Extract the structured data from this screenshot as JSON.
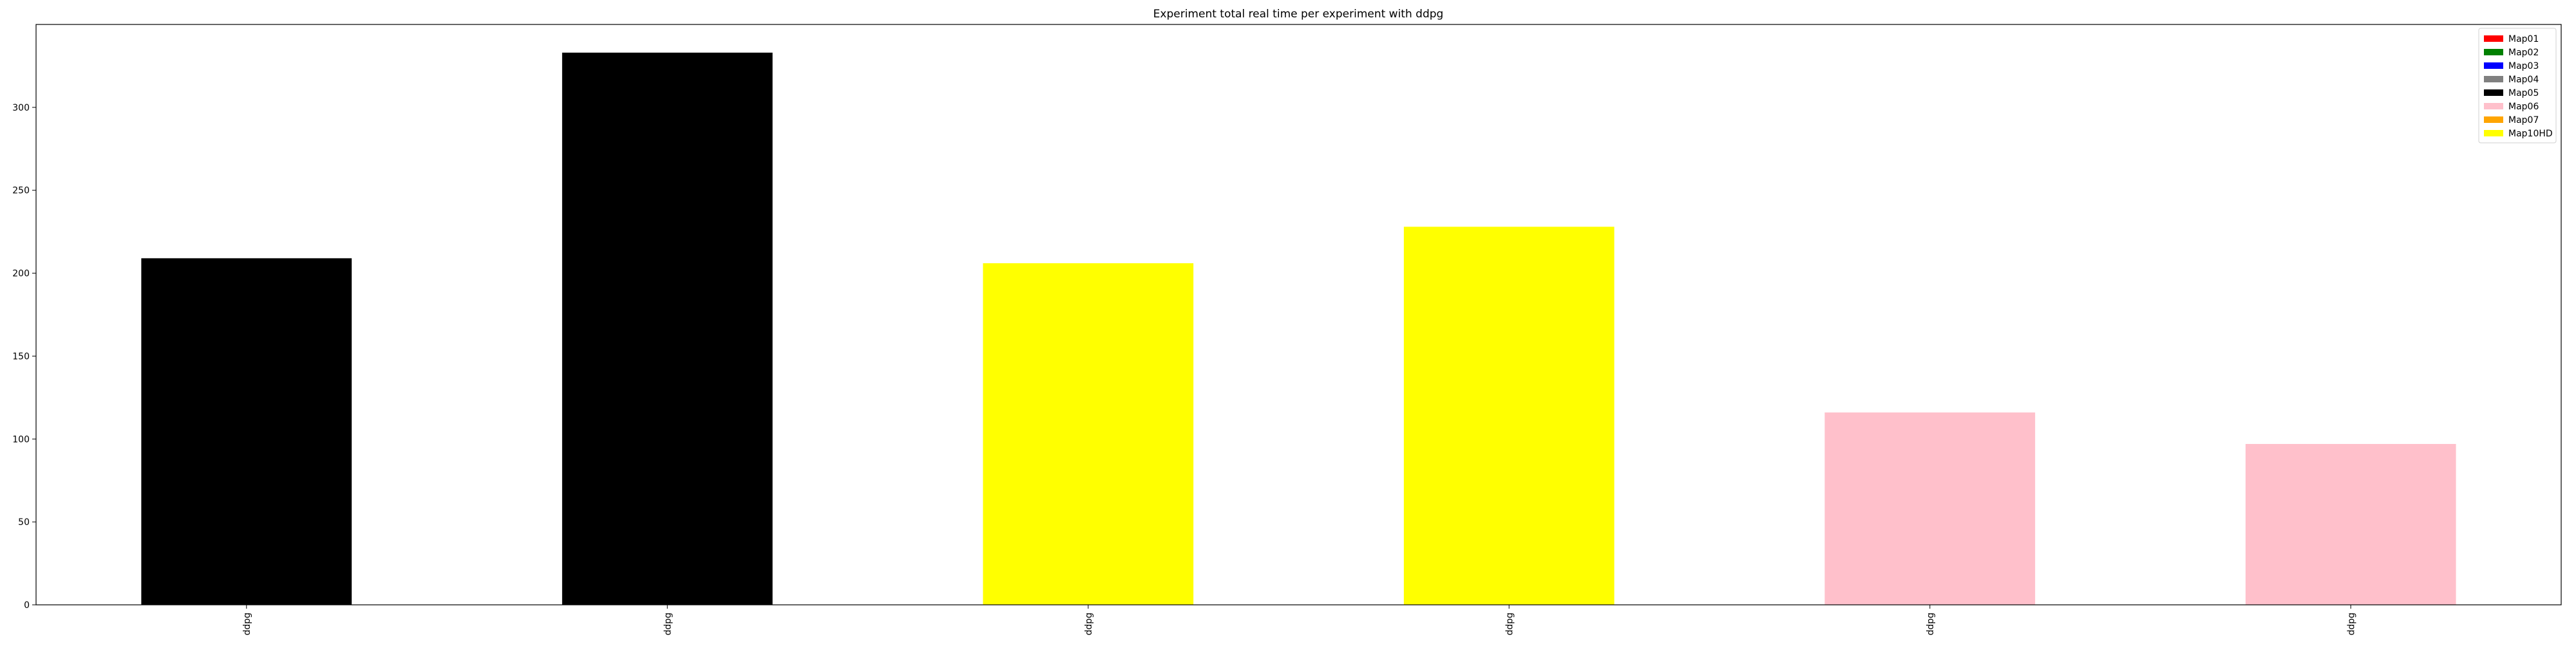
{
  "chart_data": {
    "type": "bar",
    "title": "Experiment total real time per experiment with ddpg",
    "xlabel": "",
    "ylabel": "",
    "categories": [
      "ddpg",
      "ddpg",
      "ddpg",
      "ddpg",
      "ddpg",
      "ddpg"
    ],
    "values": [
      209,
      333,
      206,
      228,
      116,
      97
    ],
    "bar_map": [
      "Map05",
      "Map05",
      "Map10HD",
      "Map10HD",
      "Map06",
      "Map06"
    ],
    "ylim": [
      0,
      350
    ],
    "yticks": [
      0,
      50,
      100,
      150,
      200,
      250,
      300
    ],
    "grid": false,
    "legend_position": "top-right",
    "legend": [
      {
        "label": "Map01",
        "color": "#ff0000"
      },
      {
        "label": "Map02",
        "color": "#008000"
      },
      {
        "label": "Map03",
        "color": "#0000ff"
      },
      {
        "label": "Map04",
        "color": "#808080"
      },
      {
        "label": "Map05",
        "color": "#000000"
      },
      {
        "label": "Map06",
        "color": "#ffc0cb"
      },
      {
        "label": "Map07",
        "color": "#ffa500"
      },
      {
        "label": "Map10HD",
        "color": "#ffff00"
      }
    ]
  }
}
